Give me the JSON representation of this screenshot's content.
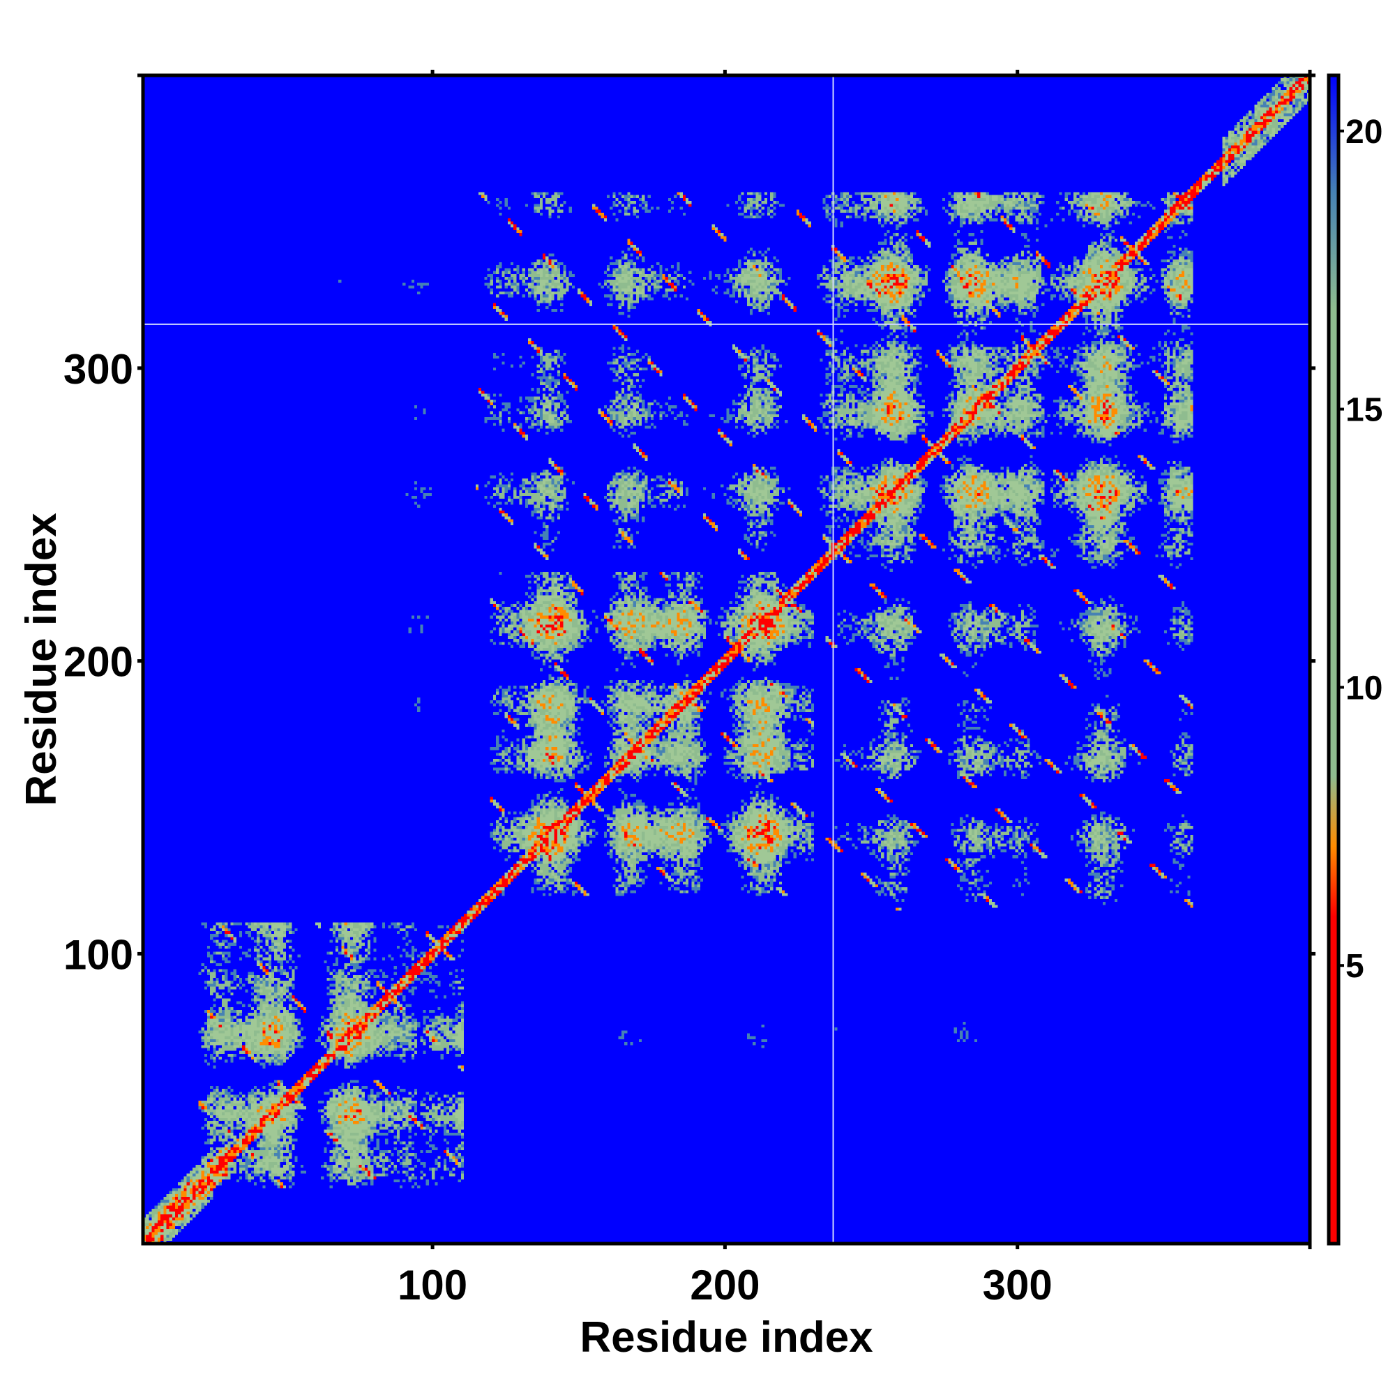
{
  "chart_data": {
    "type": "heatmap",
    "title": "",
    "xlabel": "Residue index",
    "ylabel": "Residue index",
    "xlim": [
      1,
      400
    ],
    "ylim": [
      1,
      400
    ],
    "x_ticks": [
      100,
      200,
      300
    ],
    "y_ticks": [
      100,
      200,
      300
    ],
    "x_tick_labels": [
      "100",
      "200",
      "300"
    ],
    "y_tick_labels": [
      "100",
      "200",
      "300"
    ],
    "colorbar": {
      "range": [
        0,
        21
      ],
      "ticks": [
        5,
        10,
        15,
        20
      ],
      "tick_labels": [
        "5",
        "10",
        "15",
        "20"
      ],
      "colors": [
        "#ff0000",
        "#ff8c00",
        "#8fbc8f",
        "#4682b4",
        "#0000ff"
      ]
    },
    "background_color": "#0000ff",
    "reference_lines": {
      "vertical_x": 237,
      "horizontal_y": 315
    },
    "contact_blocks": [
      {
        "x_range": [
          20,
          110
        ],
        "y_range": [
          20,
          110
        ],
        "strength": "strong"
      },
      {
        "x_range": [
          120,
          230
        ],
        "y_range": [
          120,
          230
        ],
        "strength": "strong"
      },
      {
        "x_range": [
          235,
          360
        ],
        "y_range": [
          235,
          360
        ],
        "strength": "strong"
      },
      {
        "x_range": [
          115,
          240
        ],
        "y_range": [
          235,
          360
        ],
        "strength": "medium"
      },
      {
        "x_range": [
          235,
          360
        ],
        "y_range": [
          115,
          240
        ],
        "strength": "medium"
      },
      {
        "x_range": [
          40,
          115
        ],
        "y_range": [
          160,
          330
        ],
        "strength": "weak"
      },
      {
        "x_range": [
          150,
          345
        ],
        "y_range": [
          55,
          95
        ],
        "strength": "weak"
      }
    ]
  }
}
